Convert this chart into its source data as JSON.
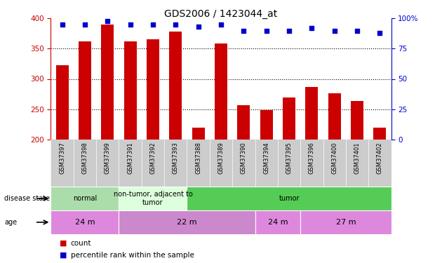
{
  "title": "GDS2006 / 1423044_at",
  "samples": [
    "GSM37397",
    "GSM37398",
    "GSM37399",
    "GSM37391",
    "GSM37392",
    "GSM37393",
    "GSM37388",
    "GSM37389",
    "GSM37390",
    "GSM37394",
    "GSM37395",
    "GSM37396",
    "GSM37400",
    "GSM37401",
    "GSM37402"
  ],
  "counts": [
    323,
    362,
    390,
    362,
    365,
    378,
    220,
    358,
    256,
    248,
    269,
    287,
    276,
    263,
    220
  ],
  "percentiles": [
    95,
    95,
    98,
    95,
    95,
    95,
    93,
    95,
    90,
    90,
    90,
    92,
    90,
    90,
    88
  ],
  "bar_color": "#cc0000",
  "dot_color": "#0000cc",
  "ylim_left": [
    200,
    400
  ],
  "ylim_right": [
    0,
    100
  ],
  "yticks_left": [
    200,
    250,
    300,
    350,
    400
  ],
  "yticks_right": [
    0,
    25,
    50,
    75,
    100
  ],
  "grid_yticks": [
    250,
    300,
    350
  ],
  "disease_state_groups": [
    {
      "label": "normal",
      "start": 0,
      "end": 3,
      "color": "#aaddaa"
    },
    {
      "label": "non-tumor, adjacent to\ntumor",
      "start": 3,
      "end": 6,
      "color": "#ddffdd"
    },
    {
      "label": "tumor",
      "start": 6,
      "end": 15,
      "color": "#55cc55"
    }
  ],
  "age_groups": [
    {
      "label": "24 m",
      "start": 0,
      "end": 3,
      "color": "#dd88dd"
    },
    {
      "label": "22 m",
      "start": 3,
      "end": 9,
      "color": "#cc88cc"
    },
    {
      "label": "24 m",
      "start": 9,
      "end": 11,
      "color": "#dd88dd"
    },
    {
      "label": "27 m",
      "start": 11,
      "end": 15,
      "color": "#dd88dd"
    }
  ],
  "left_axis_color": "#cc0000",
  "right_axis_color": "#0000cc",
  "bg_color": "#ffffff",
  "xlabels_bg": "#cccccc",
  "legend_count_color": "#cc0000",
  "legend_dot_color": "#0000cc"
}
